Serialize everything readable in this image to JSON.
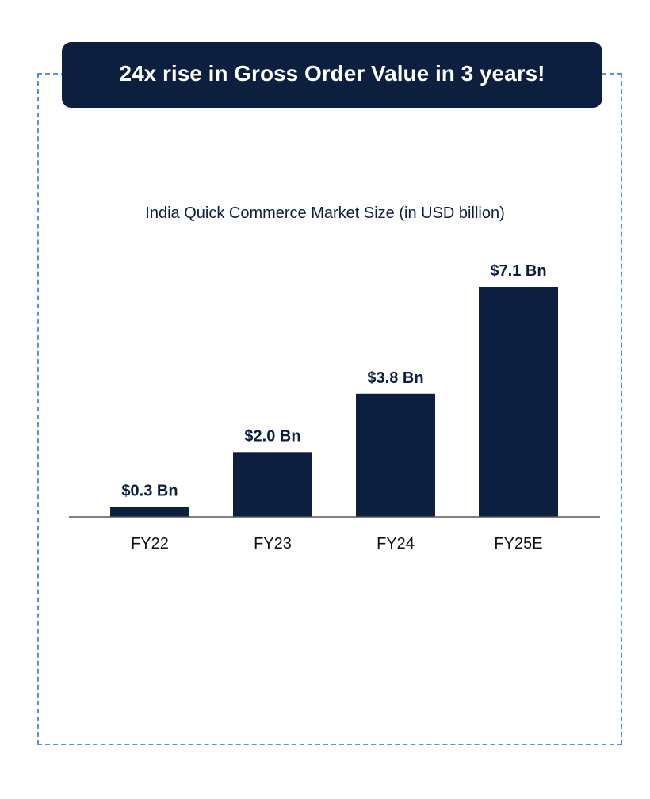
{
  "headline": "24x rise in Gross Order Value in 3 years!",
  "colors": {
    "bar": "#0c1f3f",
    "frame_border": "#5b8fe0",
    "axis": "#555555"
  },
  "chart_data": {
    "type": "bar",
    "title": "India Quick Commerce Market Size (in USD billion)",
    "categories": [
      "FY22",
      "FY23",
      "FY24",
      "FY25E"
    ],
    "values": [
      0.3,
      2.0,
      3.8,
      7.1
    ],
    "data_labels": [
      "$0.3 Bn",
      "$2.0 Bn",
      "$3.8 Bn",
      "$7.1 Bn"
    ],
    "xlabel": "",
    "ylabel": "",
    "ylim": [
      0,
      7.1
    ],
    "grid": false,
    "legend": "none"
  }
}
